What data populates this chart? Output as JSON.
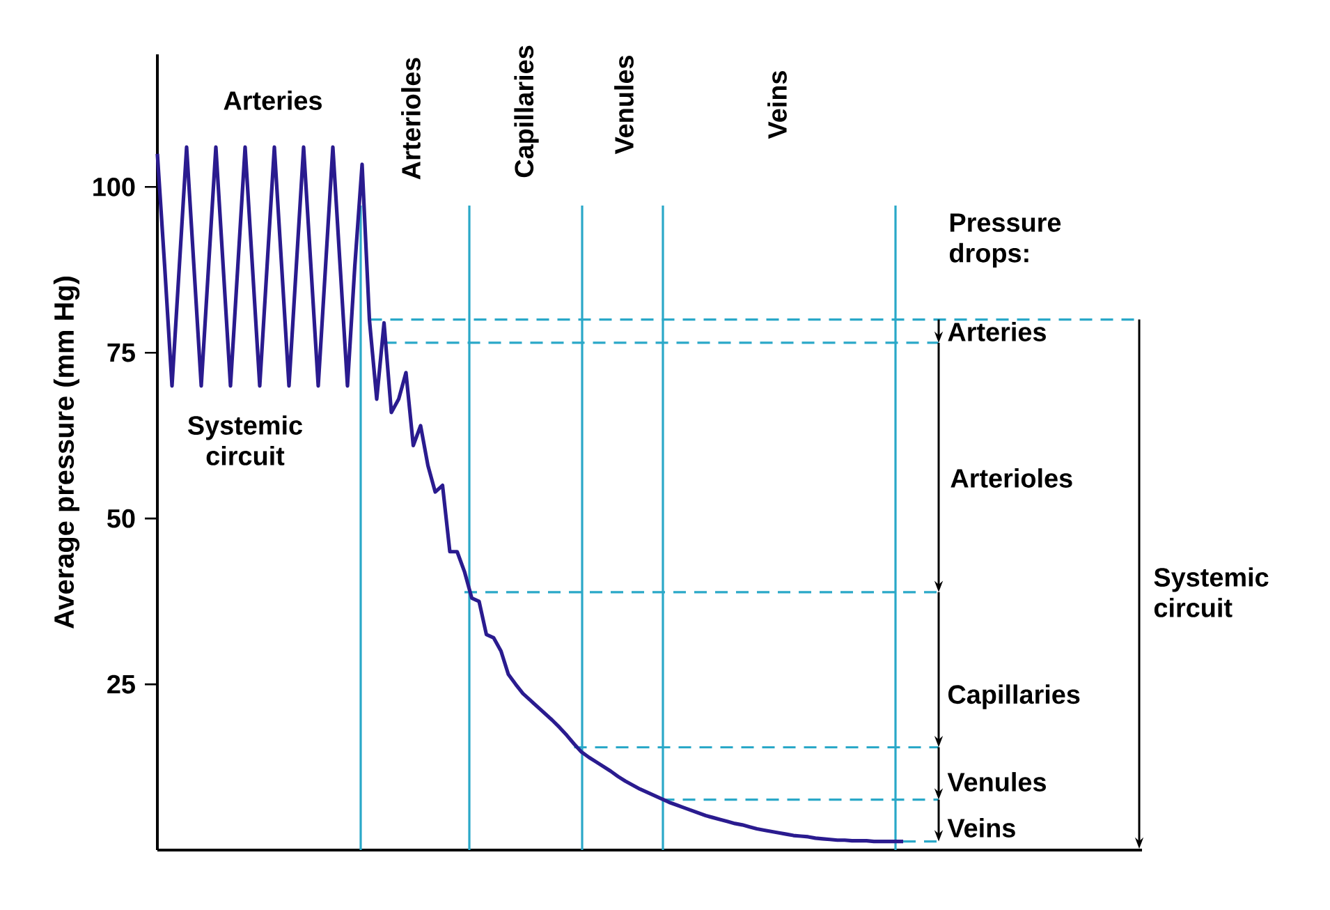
{
  "chart_data": {
    "type": "line",
    "ylabel": "Average pressure (mm Hg)",
    "categories": [
      null,
      null,
      null,
      null,
      null,
      null,
      null,
      null,
      null,
      null,
      null,
      null,
      null,
      null,
      null,
      null,
      null,
      null,
      null,
      null,
      null,
      null,
      null,
      null,
      null,
      null,
      null,
      null,
      null,
      null,
      null,
      null,
      null,
      null,
      null,
      null,
      null,
      null,
      null,
      null,
      null,
      null,
      null,
      null,
      null,
      null,
      null,
      null,
      null,
      null,
      null,
      null,
      null,
      null,
      null,
      null,
      null,
      null,
      null,
      null,
      null,
      null,
      null,
      null,
      null,
      null,
      null,
      null,
      null,
      null,
      null,
      null,
      null,
      null,
      null,
      null,
      null,
      null,
      null,
      null,
      null,
      null,
      null,
      null,
      null,
      null,
      null,
      null,
      null,
      null,
      null,
      null,
      null,
      null,
      null,
      null,
      null,
      null,
      null,
      null,
      null,
      null,
      null
    ],
    "ylim": [
      0,
      120
    ],
    "yticks": [
      25,
      50,
      75,
      100
    ],
    "tick_labels": "y",
    "marker": "none",
    "line_style": "solid",
    "series": [
      {
        "color": "#2a1b8f",
        "values": [
          105,
          88,
          70,
          88,
          106,
          88,
          70,
          88,
          106,
          88,
          70,
          88,
          106,
          88,
          70,
          88,
          106,
          88,
          70,
          88,
          106,
          88,
          70,
          88,
          106,
          88,
          70,
          88,
          103.4,
          80,
          68,
          79.5,
          66,
          68,
          72,
          61,
          64,
          58,
          54,
          55,
          45,
          45,
          42,
          38,
          37.5,
          32.5,
          32,
          30,
          26.5,
          25,
          23.6,
          22.6,
          21.6,
          20.6,
          19.6,
          18.5,
          17.3,
          16.0,
          14.8,
          14.0,
          13.3,
          12.6,
          11.9,
          11.1,
          10.4,
          9.8,
          9.2,
          8.7,
          8.2,
          7.7,
          7.2,
          6.8,
          6.4,
          6.0,
          5.6,
          5.2,
          4.9,
          4.6,
          4.3,
          4.0,
          3.8,
          3.5,
          3.2,
          3.0,
          2.8,
          2.6,
          2.4,
          2.2,
          2.1,
          2.0,
          1.8,
          1.7,
          1.6,
          1.5,
          1.5,
          1.4,
          1.4,
          1.4,
          1.3,
          1.3,
          1.3,
          1.3,
          1.3
        ]
      }
    ],
    "ref_lines": [
      {
        "axis": "y",
        "value": 80,
        "color": "#2aa8c8",
        "line_style": "dashed"
      },
      {
        "axis": "y",
        "value": 76.5,
        "color": "#2aa8c8",
        "line_style": "dashed"
      },
      {
        "axis": "y",
        "value": 38.9,
        "color": "#2aa8c8",
        "line_style": "dashed"
      },
      {
        "axis": "y",
        "value": 15.5,
        "color": "#2aa8c8",
        "line_style": "dashed"
      },
      {
        "axis": "y",
        "value": 7.6,
        "color": "#2aa8c8",
        "line_style": "dashed"
      }
    ],
    "annotations": [
      "Arteries",
      "Arterioles",
      "Capillaries",
      "Venules",
      "Veins",
      "Systemic circuit",
      "Pressure drops:",
      "Arteries",
      "Arterioles",
      "Capillaries",
      "Venules",
      "Veins",
      "Systemic circuit"
    ]
  }
}
